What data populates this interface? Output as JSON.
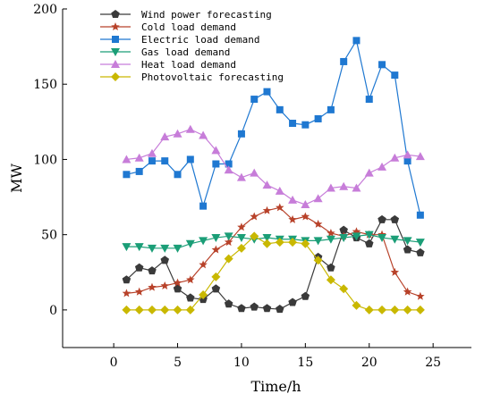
{
  "chart_data": {
    "type": "line",
    "xlabel": "Time/h",
    "ylabel": "MW",
    "xlim": [
      -4,
      28
    ],
    "ylim": [
      -25,
      200
    ],
    "xticks": [
      0,
      5,
      10,
      15,
      20,
      25
    ],
    "yticks": [
      0,
      50,
      100,
      150,
      200
    ],
    "legend_position": "top-left",
    "x": [
      1,
      2,
      3,
      4,
      5,
      6,
      7,
      8,
      9,
      10,
      11,
      12,
      13,
      14,
      15,
      16,
      17,
      18,
      19,
      20,
      21,
      22,
      23,
      24
    ],
    "series": [
      {
        "name": "Wind power forecasting",
        "color": "#3a3a3a",
        "marker": "pentagon",
        "values": [
          20,
          28,
          26,
          33,
          14,
          8,
          7,
          14,
          4,
          1,
          2,
          1,
          0.5,
          5,
          9,
          35,
          28,
          53,
          48,
          44,
          60,
          60,
          40,
          38
        ]
      },
      {
        "name": "Cold load demand",
        "color": "#b8422a",
        "marker": "star",
        "values": [
          11,
          12,
          15,
          16,
          18,
          20,
          30,
          40,
          45,
          55,
          62,
          66,
          68,
          60,
          62,
          57,
          51,
          49,
          52,
          50,
          50,
          25,
          12,
          9
        ]
      },
      {
        "name": "Electric load demand",
        "color": "#1f78d1",
        "marker": "square",
        "values": [
          90,
          92,
          99,
          99,
          90,
          100,
          69,
          97,
          97,
          117,
          140,
          145,
          133,
          124,
          123,
          127,
          133,
          165,
          179,
          140,
          163,
          156,
          99,
          63
        ]
      },
      {
        "name": "Gas load demand",
        "color": "#1b9e77",
        "marker": "triangle-down",
        "values": [
          42,
          42,
          41,
          41,
          41,
          44,
          46,
          48,
          49,
          48,
          47,
          48,
          47,
          47,
          46,
          46,
          47,
          48,
          49,
          50,
          48,
          47,
          46,
          45
        ]
      },
      {
        "name": "Heat load demand",
        "color": "#c77dd9",
        "marker": "triangle-up",
        "values": [
          100,
          101,
          104,
          115,
          117,
          120,
          116,
          106,
          93,
          88,
          91,
          83,
          79,
          73,
          70,
          74,
          81,
          82,
          81,
          91,
          95,
          101,
          103,
          102
        ]
      },
      {
        "name": "Photovoltaic forecasting",
        "color": "#c9b800",
        "marker": "diamond",
        "values": [
          0,
          0,
          0,
          0,
          0,
          0,
          10,
          22,
          34,
          41,
          49,
          44,
          45,
          45,
          44,
          33,
          20,
          14,
          3,
          0,
          0,
          0,
          0,
          0
        ]
      }
    ]
  }
}
